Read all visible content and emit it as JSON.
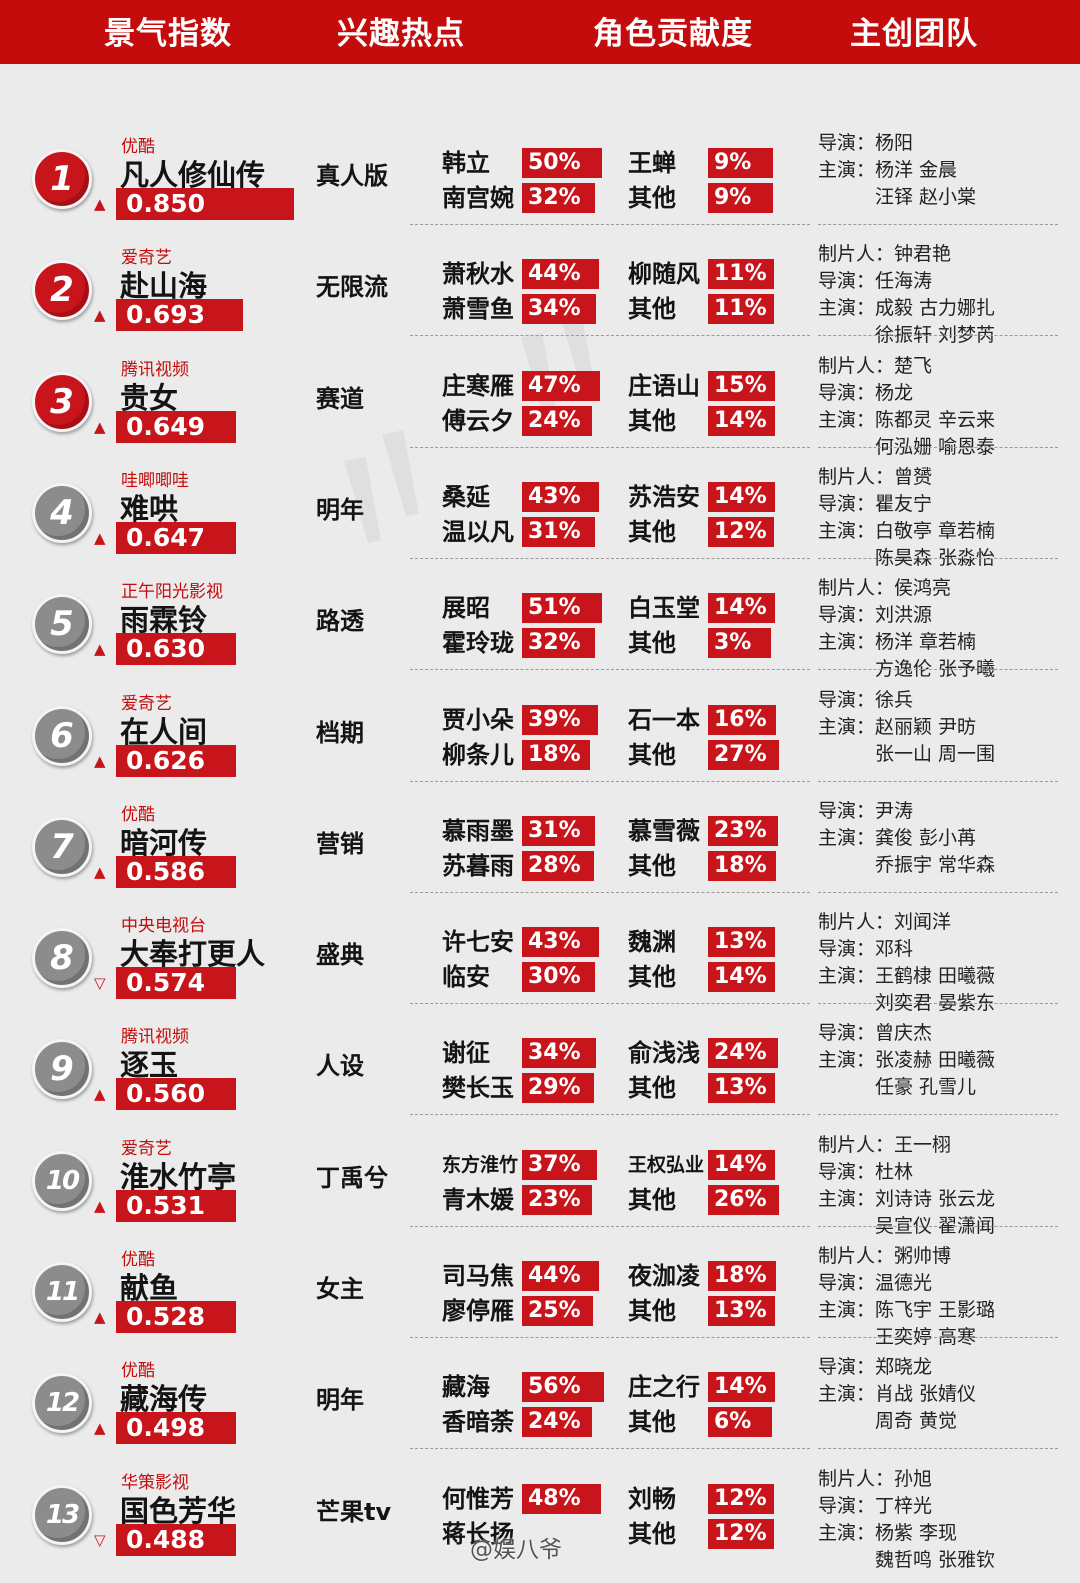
{
  "header": [
    "景气指数",
    "兴趣热点",
    "角色贡献度",
    "主创团队"
  ],
  "rows": [
    {
      "rank": "1",
      "platform": "优酷",
      "title": "凡人修仙传",
      "trend": "up",
      "score": "0.850",
      "hot": "真人版",
      "roles": [
        [
          "韩立",
          "50%"
        ],
        [
          "南宫婉",
          "32%"
        ],
        [
          "王蝉",
          "9%"
        ],
        [
          "其他",
          "9%"
        ]
      ],
      "team": [
        [
          "导演：",
          "杨阳"
        ],
        [
          "主演：",
          "杨洋  金晨"
        ],
        [
          "",
          "汪铎  赵小棠"
        ]
      ]
    },
    {
      "rank": "2",
      "platform": "爱奇艺",
      "title": "赴山海",
      "trend": "up",
      "score": "0.693",
      "hot": "无限流",
      "roles": [
        [
          "萧秋水",
          "44%"
        ],
        [
          "萧雪鱼",
          "34%"
        ],
        [
          "柳随风",
          "11%"
        ],
        [
          "其他",
          "11%"
        ]
      ],
      "team": [
        [
          "制片人：",
          "钟君艳"
        ],
        [
          "导演：",
          "任海涛"
        ],
        [
          "主演：",
          "成毅  古力娜扎"
        ],
        [
          "",
          "徐振轩  刘梦芮"
        ]
      ]
    },
    {
      "rank": "3",
      "platform": "腾讯视频",
      "title": "贵女",
      "trend": "up",
      "score": "0.649",
      "hot": "赛道",
      "roles": [
        [
          "庄寒雁",
          "47%"
        ],
        [
          "傅云夕",
          "24%"
        ],
        [
          "庄语山",
          "15%"
        ],
        [
          "其他",
          "14%"
        ]
      ],
      "team": [
        [
          "制片人：",
          "楚飞"
        ],
        [
          "导演：",
          "杨龙"
        ],
        [
          "主演：",
          "陈都灵  辛云来"
        ],
        [
          "",
          "何泓姗  喻恩泰"
        ]
      ]
    },
    {
      "rank": "4",
      "platform": "哇唧唧哇",
      "title": "难哄",
      "trend": "up",
      "score": "0.647",
      "hot": "明年",
      "roles": [
        [
          "桑延",
          "43%"
        ],
        [
          "温以凡",
          "31%"
        ],
        [
          "苏浩安",
          "14%"
        ],
        [
          "其他",
          "12%"
        ]
      ],
      "team": [
        [
          "制片人：",
          "曾赟"
        ],
        [
          "导演：",
          "瞿友宁"
        ],
        [
          "主演：",
          "白敬亭  章若楠"
        ],
        [
          "",
          "陈昊森  张淼怡"
        ]
      ]
    },
    {
      "rank": "5",
      "platform": "正午阳光影视",
      "title": "雨霖铃",
      "trend": "up",
      "score": "0.630",
      "hot": "路透",
      "roles": [
        [
          "展昭",
          "51%"
        ],
        [
          "霍玲珑",
          "32%"
        ],
        [
          "白玉堂",
          "14%"
        ],
        [
          "其他",
          "3%"
        ]
      ],
      "team": [
        [
          "制片人：",
          "侯鸿亮"
        ],
        [
          "导演：",
          "刘洪源"
        ],
        [
          "主演：",
          "杨洋  章若楠"
        ],
        [
          "",
          "方逸伦  张予曦"
        ]
      ]
    },
    {
      "rank": "6",
      "platform": "爱奇艺",
      "title": "在人间",
      "trend": "up",
      "score": "0.626",
      "hot": "档期",
      "roles": [
        [
          "贾小朵",
          "39%"
        ],
        [
          "柳条儿",
          "18%"
        ],
        [
          "石一本",
          "16%"
        ],
        [
          "其他",
          "27%"
        ]
      ],
      "team": [
        [
          "导演：",
          "徐兵"
        ],
        [
          "主演：",
          "赵丽颖  尹昉"
        ],
        [
          "",
          "张一山  周一围"
        ]
      ]
    },
    {
      "rank": "7",
      "platform": "优酷",
      "title": "暗河传",
      "trend": "up",
      "score": "0.586",
      "hot": "营销",
      "roles": [
        [
          "慕雨墨",
          "31%"
        ],
        [
          "苏暮雨",
          "28%"
        ],
        [
          "慕雪薇",
          "23%"
        ],
        [
          "其他",
          "18%"
        ]
      ],
      "team": [
        [
          "导演：",
          "尹涛"
        ],
        [
          "主演：",
          "龚俊  彭小苒"
        ],
        [
          "",
          "乔振宇  常华森"
        ]
      ]
    },
    {
      "rank": "8",
      "platform": "中央电视台",
      "title": "大奉打更人",
      "trend": "down",
      "score": "0.574",
      "hot": "盛典",
      "roles": [
        [
          "许七安",
          "43%"
        ],
        [
          "临安",
          "30%"
        ],
        [
          "魏渊",
          "13%"
        ],
        [
          "其他",
          "14%"
        ]
      ],
      "team": [
        [
          "制片人：",
          "刘闻洋"
        ],
        [
          "导演：",
          "邓科"
        ],
        [
          "主演：",
          "王鹤棣  田曦薇"
        ],
        [
          "",
          "刘奕君  晏紫东"
        ]
      ]
    },
    {
      "rank": "9",
      "platform": "腾讯视频",
      "title": "逐玉",
      "trend": "up",
      "score": "0.560",
      "hot": "人设",
      "roles": [
        [
          "谢征",
          "34%"
        ],
        [
          "樊长玉",
          "29%"
        ],
        [
          "俞浅浅",
          "24%"
        ],
        [
          "其他",
          "13%"
        ]
      ],
      "team": [
        [
          "导演：",
          "曾庆杰"
        ],
        [
          "主演：",
          "张凌赫  田曦薇"
        ],
        [
          "",
          "任豪  孔雪儿"
        ]
      ]
    },
    {
      "rank": "10",
      "platform": "爱奇艺",
      "title": "淮水竹亭",
      "trend": "up",
      "score": "0.531",
      "hot": "丁禹兮",
      "roles": [
        [
          "东方淮竹",
          "37%"
        ],
        [
          "青木媛",
          "23%"
        ],
        [
          "王权弘业",
          "14%"
        ],
        [
          "其他",
          "26%"
        ]
      ],
      "team": [
        [
          "制片人：",
          "王一栩"
        ],
        [
          "导演：",
          "杜林"
        ],
        [
          "主演：",
          "刘诗诗  张云龙"
        ],
        [
          "",
          "吴宣仪  翟潇闻"
        ]
      ]
    },
    {
      "rank": "11",
      "platform": "优酷",
      "title": "献鱼",
      "trend": "up",
      "score": "0.528",
      "hot": "女主",
      "roles": [
        [
          "司马焦",
          "44%"
        ],
        [
          "廖停雁",
          "25%"
        ],
        [
          "夜泇凌",
          "18%"
        ],
        [
          "其他",
          "13%"
        ]
      ],
      "team": [
        [
          "制片人：",
          "粥帅博"
        ],
        [
          "导演：",
          "温德光"
        ],
        [
          "主演：",
          "陈飞宇  王影璐"
        ],
        [
          "",
          "王奕婷  高寒"
        ]
      ]
    },
    {
      "rank": "12",
      "platform": "优酷",
      "title": "藏海传",
      "trend": "up",
      "score": "0.498",
      "hot": "明年",
      "roles": [
        [
          "藏海",
          "56%"
        ],
        [
          "香暗荼",
          "24%"
        ],
        [
          "庄之行",
          "14%"
        ],
        [
          "其他",
          "6%"
        ]
      ],
      "team": [
        [
          "导演：",
          "郑晓龙"
        ],
        [
          "主演：",
          "肖战  张婧仪"
        ],
        [
          "",
          "周奇  黄觉"
        ]
      ]
    },
    {
      "rank": "13",
      "platform": "华策影视",
      "title": "国色芳华",
      "trend": "down",
      "score": "0.488",
      "hot": "芒果tv",
      "roles": [
        [
          "何惟芳",
          "48%"
        ],
        [
          "蒋长扬",
          ""
        ],
        [
          "刘畅",
          "12%"
        ],
        [
          "其他",
          "12%"
        ]
      ],
      "team": [
        [
          "制片人：",
          "孙旭"
        ],
        [
          "导演：",
          "丁梓光"
        ],
        [
          "主演：",
          "杨紫  李现"
        ],
        [
          "",
          "魏哲鸣  张雅钦"
        ]
      ]
    }
  ],
  "credit": "@娱八爷",
  "colors": {
    "accent": "#c8141b",
    "header_bg": "#c40c0c",
    "bg": "#ebebeb"
  }
}
